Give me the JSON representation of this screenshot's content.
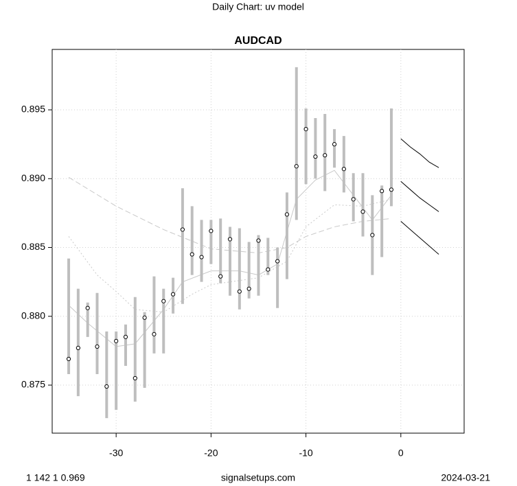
{
  "chart_data": {
    "type": "ohlc-forecast",
    "suptitle": "Daily Chart: uv model",
    "title": "AUDCAD",
    "footer_left": "1 142 1 0.969",
    "footer_center": "signalsetups.com",
    "footer_right": "2024-03-21",
    "xlim": [
      -36.74,
      6.67
    ],
    "ylim": [
      0.87151,
      0.89939
    ],
    "xticks": [
      -30,
      -20,
      -10,
      0
    ],
    "yticks": [
      0.875,
      {
        "value": 0.88,
        "label": "0.880"
      },
      0.885,
      {
        "value": 0.89,
        "label": "0.890"
      },
      0.895
    ],
    "grid": true,
    "bar_color": "#bebebe",
    "line_color": "#c8c8c8",
    "forecast_color": "#000000",
    "x": [
      -35,
      -34,
      -33,
      -32,
      -31,
      -30,
      -29,
      -28,
      -27,
      -26,
      -25,
      -24,
      -23,
      -22,
      -21,
      -20,
      -19,
      -18,
      -17,
      -16,
      -15,
      -14,
      -13,
      -12,
      -11,
      -10,
      -9,
      -8,
      -7,
      -6,
      -5,
      -4,
      -3,
      -2,
      -1
    ],
    "close": [
      0.8769,
      0.8777,
      0.8806,
      0.8778,
      0.8749,
      0.8782,
      0.8785,
      0.8755,
      0.8799,
      0.8787,
      0.8811,
      0.8816,
      0.8863,
      0.8845,
      0.8843,
      0.8862,
      0.8829,
      0.8856,
      0.8818,
      0.882,
      0.8855,
      0.8834,
      0.884,
      0.8874,
      0.8909,
      0.8936,
      0.8916,
      0.8917,
      0.8925,
      0.8907,
      0.8885,
      0.8876,
      0.8859,
      0.8891,
      0.8892
    ],
    "high": [
      0.8842,
      0.882,
      0.881,
      0.8817,
      0.8789,
      0.8789,
      0.8794,
      0.8814,
      0.8803,
      0.8829,
      0.882,
      0.8828,
      0.8893,
      0.888,
      0.887,
      0.887,
      0.8871,
      0.8865,
      0.8864,
      0.8854,
      0.8859,
      0.8857,
      0.885,
      0.889,
      0.8981,
      0.8951,
      0.8944,
      0.8947,
      0.8936,
      0.8931,
      0.8904,
      0.8904,
      0.8888,
      0.8895,
      0.8951
    ],
    "low": [
      0.8758,
      0.8742,
      0.8785,
      0.8758,
      0.8726,
      0.8732,
      0.8764,
      0.8738,
      0.8748,
      0.8773,
      0.8773,
      0.8802,
      0.8809,
      0.883,
      0.8825,
      0.8838,
      0.8824,
      0.8815,
      0.8805,
      0.8813,
      0.8815,
      0.883,
      0.8806,
      0.8827,
      0.887,
      0.8896,
      0.89,
      0.8891,
      0.8908,
      0.889,
      0.8869,
      0.8858,
      0.883,
      0.8843,
      0.888
    ],
    "lines": [
      {
        "dash": "8,4",
        "x": [
          -35,
          -30,
          -25,
          -20,
          -15,
          -12,
          -10,
          -7,
          -4,
          -1
        ],
        "values": [
          0.8901,
          0.888,
          0.8863,
          0.8849,
          0.8846,
          0.885,
          0.8858,
          0.8865,
          0.8869,
          0.8871
        ]
      },
      {
        "dash": "2,3",
        "x": [
          -35,
          -32,
          -30,
          -28,
          -25,
          -22,
          -20,
          -15,
          -12,
          -10,
          -7,
          -4,
          -1
        ],
        "values": [
          0.8858,
          0.883,
          0.8818,
          0.8805,
          0.8803,
          0.8816,
          0.8823,
          0.8828,
          0.884,
          0.8865,
          0.8881,
          0.888,
          0.8885
        ]
      },
      {
        "dash": "",
        "x": [
          -35,
          -33,
          -30,
          -28,
          -25,
          -23,
          -20,
          -17,
          -15,
          -13,
          -11,
          -9,
          -7,
          -5,
          -3,
          -1
        ],
        "values": [
          0.8808,
          0.8795,
          0.8778,
          0.878,
          0.8805,
          0.8825,
          0.8833,
          0.8833,
          0.883,
          0.8838,
          0.8885,
          0.8899,
          0.8906,
          0.8888,
          0.887,
          0.8888
        ]
      }
    ],
    "forecast": [
      {
        "x": [
          0,
          1,
          2,
          3,
          4
        ],
        "values": [
          0.8929,
          0.8923,
          0.8918,
          0.8912,
          0.8908
        ]
      },
      {
        "x": [
          0,
          1,
          2,
          3,
          4
        ],
        "values": [
          0.8898,
          0.8892,
          0.8886,
          0.8881,
          0.8876
        ]
      },
      {
        "x": [
          0,
          1,
          2,
          3,
          4
        ],
        "values": [
          0.8869,
          0.8863,
          0.8857,
          0.8851,
          0.8845
        ]
      }
    ]
  }
}
